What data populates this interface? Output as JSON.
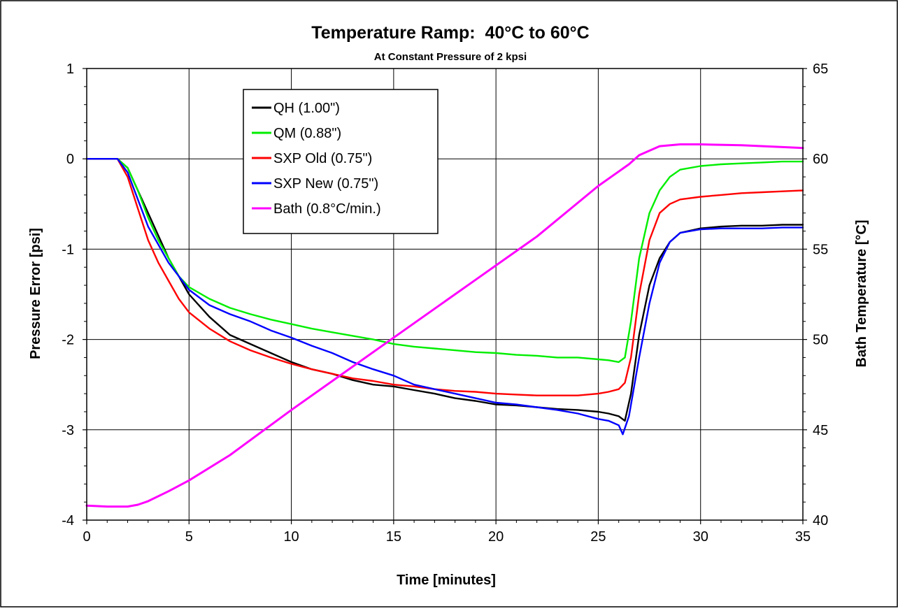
{
  "chart_data": {
    "type": "line",
    "title": "Temperature Ramp:  40°C to 60°C",
    "subtitle": "At Constant Pressure of 2 kpsi",
    "xlabel": "Time [minutes]",
    "ylabel": "Pressure Error [psi]",
    "y2label": "Bath Temperature [°C]",
    "xlim": [
      0,
      35
    ],
    "ylim": [
      -4,
      1
    ],
    "y2lim": [
      40,
      65
    ],
    "xticks": [
      "0",
      "5",
      "10",
      "15",
      "20",
      "25",
      "30",
      "35"
    ],
    "yticks": [
      "1",
      "0",
      "-1",
      "-2",
      "-3",
      "-4"
    ],
    "y2ticks": [
      "65",
      "60",
      "55",
      "50",
      "45",
      "40"
    ],
    "grid": true,
    "legend_position": "top-left",
    "series": [
      {
        "name": "QH (1.00\")",
        "color": "#000000",
        "axis": "left",
        "x": [
          0,
          1,
          1.5,
          2,
          2.5,
          3,
          3.5,
          4,
          4.5,
          5,
          6,
          7,
          8,
          9,
          10,
          11,
          12,
          13,
          14,
          15,
          16,
          17,
          18,
          19,
          20,
          21,
          22,
          23,
          24,
          25,
          25.5,
          26,
          26.3,
          26.6,
          27,
          27.5,
          28,
          28.5,
          29,
          30,
          31,
          32,
          33,
          34,
          35
        ],
        "y": [
          0,
          0,
          0,
          -0.1,
          -0.35,
          -0.6,
          -0.85,
          -1.1,
          -1.3,
          -1.5,
          -1.75,
          -1.95,
          -2.05,
          -2.15,
          -2.25,
          -2.33,
          -2.38,
          -2.45,
          -2.5,
          -2.52,
          -2.56,
          -2.6,
          -2.65,
          -2.68,
          -2.72,
          -2.73,
          -2.75,
          -2.77,
          -2.78,
          -2.8,
          -2.82,
          -2.85,
          -2.9,
          -2.6,
          -1.95,
          -1.4,
          -1.1,
          -0.92,
          -0.82,
          -0.77,
          -0.75,
          -0.74,
          -0.74,
          -0.73,
          -0.73
        ]
      },
      {
        "name": "QM (0.88\")",
        "color": "#00ee00",
        "axis": "left",
        "x": [
          0,
          1,
          1.5,
          2,
          2.5,
          3,
          3.5,
          4,
          4.5,
          5,
          6,
          7,
          8,
          9,
          10,
          11,
          12,
          13,
          14,
          15,
          16,
          17,
          18,
          19,
          20,
          21,
          22,
          23,
          24,
          25,
          25.5,
          26,
          26.3,
          26.6,
          27,
          27.5,
          28,
          28.5,
          29,
          30,
          31,
          32,
          33,
          34,
          35
        ],
        "y": [
          0,
          0,
          0,
          -0.1,
          -0.35,
          -0.65,
          -0.9,
          -1.1,
          -1.3,
          -1.42,
          -1.55,
          -1.65,
          -1.72,
          -1.78,
          -1.83,
          -1.88,
          -1.92,
          -1.96,
          -2.0,
          -2.05,
          -2.08,
          -2.1,
          -2.12,
          -2.14,
          -2.15,
          -2.17,
          -2.18,
          -2.2,
          -2.2,
          -2.22,
          -2.23,
          -2.25,
          -2.2,
          -1.8,
          -1.1,
          -0.6,
          -0.35,
          -0.2,
          -0.12,
          -0.08,
          -0.06,
          -0.05,
          -0.04,
          -0.03,
          -0.03
        ]
      },
      {
        "name": "SXP Old (0.75\")",
        "color": "#ff0000",
        "axis": "left",
        "x": [
          0,
          1,
          1.5,
          2,
          2.5,
          3,
          3.5,
          4,
          4.5,
          5,
          6,
          7,
          8,
          9,
          10,
          11,
          12,
          13,
          14,
          15,
          16,
          17,
          18,
          19,
          20,
          21,
          22,
          23,
          24,
          25,
          25.5,
          26,
          26.3,
          26.6,
          27,
          27.5,
          28,
          28.5,
          29,
          30,
          31,
          32,
          33,
          34,
          35
        ],
        "y": [
          0,
          0,
          0,
          -0.2,
          -0.55,
          -0.9,
          -1.15,
          -1.35,
          -1.55,
          -1.7,
          -1.88,
          -2.02,
          -2.12,
          -2.2,
          -2.27,
          -2.33,
          -2.38,
          -2.43,
          -2.46,
          -2.5,
          -2.52,
          -2.55,
          -2.57,
          -2.58,
          -2.6,
          -2.61,
          -2.62,
          -2.62,
          -2.62,
          -2.6,
          -2.58,
          -2.55,
          -2.48,
          -2.2,
          -1.5,
          -0.9,
          -0.6,
          -0.5,
          -0.45,
          -0.42,
          -0.4,
          -0.38,
          -0.37,
          -0.36,
          -0.35
        ]
      },
      {
        "name": "SXP New (0.75\")",
        "color": "#0000ff",
        "axis": "left",
        "x": [
          0,
          1,
          1.5,
          2,
          2.5,
          3,
          3.5,
          4,
          4.5,
          5,
          6,
          7,
          8,
          9,
          10,
          11,
          12,
          13,
          14,
          15,
          16,
          17,
          18,
          19,
          20,
          21,
          22,
          23,
          24,
          25,
          25.5,
          26,
          26.2,
          26.5,
          27,
          27.5,
          28,
          28.5,
          29,
          30,
          31,
          32,
          33,
          34,
          35
        ],
        "y": [
          0,
          0,
          0,
          -0.15,
          -0.45,
          -0.75,
          -0.95,
          -1.15,
          -1.3,
          -1.45,
          -1.62,
          -1.72,
          -1.8,
          -1.9,
          -1.98,
          -2.07,
          -2.15,
          -2.25,
          -2.33,
          -2.4,
          -2.5,
          -2.55,
          -2.6,
          -2.65,
          -2.7,
          -2.72,
          -2.75,
          -2.78,
          -2.82,
          -2.88,
          -2.9,
          -2.95,
          -3.05,
          -2.85,
          -2.2,
          -1.6,
          -1.15,
          -0.92,
          -0.82,
          -0.78,
          -0.77,
          -0.77,
          -0.77,
          -0.76,
          -0.76
        ]
      },
      {
        "name": "Bath (0.8°C/min.)",
        "color": "#ff00ff",
        "axis": "right",
        "x": [
          0,
          1,
          2,
          2.5,
          3,
          4,
          5,
          7,
          10,
          13,
          16,
          19,
          22,
          25,
          26.5,
          27,
          28,
          29,
          30,
          32,
          35
        ],
        "y": [
          40.8,
          40.75,
          40.75,
          40.85,
          41.05,
          41.6,
          42.2,
          43.6,
          46.1,
          48.5,
          50.9,
          53.3,
          55.7,
          58.5,
          59.7,
          60.2,
          60.7,
          60.8,
          60.8,
          60.75,
          60.6
        ]
      }
    ]
  }
}
